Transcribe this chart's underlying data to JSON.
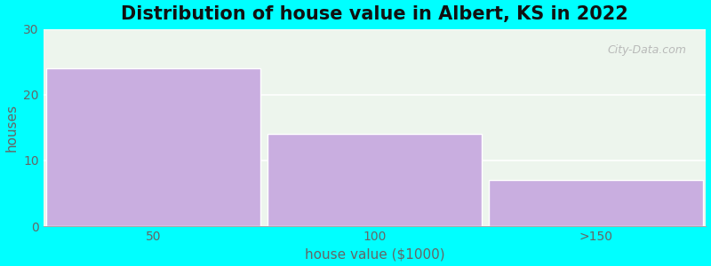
{
  "title": "Distribution of house value in Albert, KS in 2022",
  "categories": [
    "50",
    "100",
    ">150"
  ],
  "values": [
    24,
    14,
    7
  ],
  "bar_color": "#c9aee0",
  "xlabel": "house value ($1000)",
  "ylabel": "houses",
  "ylim": [
    0,
    30
  ],
  "yticks": [
    0,
    10,
    20,
    30
  ],
  "background_color": "#00ffff",
  "plot_bg_color": "#edf5ed",
  "title_fontsize": 15,
  "label_fontsize": 11,
  "tick_fontsize": 10,
  "tick_color": "#666666",
  "watermark": "City-Data.com"
}
